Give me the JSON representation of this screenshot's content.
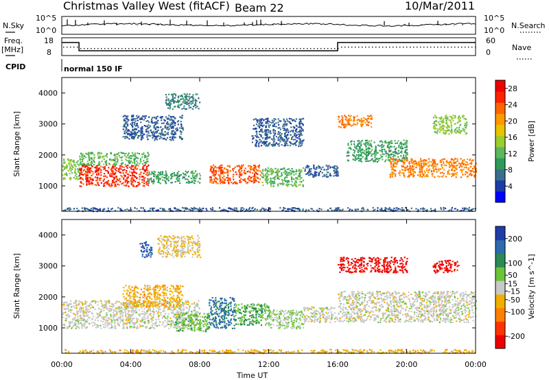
{
  "header": {
    "title": "Christmas Valley West (fitACF)",
    "beam": "Beam 22",
    "date": "10/Mar/2011"
  },
  "summary_labels": {
    "nsky": "N.Sky",
    "nsky_hi": "10^5",
    "nsky_lo": "10^0",
    "nsearch": "N.Search",
    "nsearch_hi": "10^5",
    "nsearch_lo": "10^0",
    "freq": "Freq.",
    "freq_unit": "[MHz]",
    "freq_hi": "18",
    "freq_lo": "8",
    "nave": "Nave",
    "nave_hi": "60",
    "nave_lo": "0",
    "cpid": "CPID",
    "cpid_value": "normal 150 IF"
  },
  "colors": {
    "power_scale": [
      "#0000ff",
      "#1e3ca8",
      "#3a6e8c",
      "#2e9a5a",
      "#5cb85c",
      "#9ccc2e",
      "#e8c400",
      "#ff9900",
      "#ff6600",
      "#ff2200",
      "#ee0000"
    ],
    "velocity_scale": [
      "#1f3da8",
      "#2e6ab0",
      "#2b8a55",
      "#6cc43a",
      "#c8c8c8",
      "#f0b000",
      "#ff8000",
      "#ff3300",
      "#ee0000"
    ]
  },
  "chart_data": [
    {
      "type": "heatmap",
      "name": "Power panel",
      "xlabel": "",
      "ylabel": "Slant Range [km]",
      "x_ticks": [
        "00:00",
        "04:00",
        "08:00",
        "12:00",
        "16:00",
        "20:00",
        "00:00"
      ],
      "y_ticks": [
        "1000",
        "2000",
        "3000",
        "4000"
      ],
      "xlim_hours": [
        0,
        24
      ],
      "ylim_km": [
        180,
        4500
      ],
      "colorbar": {
        "label": "Power [dB]",
        "ticks": [
          "4",
          "8",
          "12",
          "16",
          "20",
          "24",
          "28"
        ],
        "range": [
          0,
          30
        ]
      },
      "regions": [
        {
          "x": [
            0.0,
            1.0
          ],
          "y": [
            1200,
            1900
          ],
          "value": 14
        },
        {
          "x": [
            1.0,
            5.0
          ],
          "y": [
            1000,
            1700
          ],
          "value": 26
        },
        {
          "x": [
            1.0,
            5.0
          ],
          "y": [
            1700,
            2100
          ],
          "value": 12
        },
        {
          "x": [
            3.5,
            7.0
          ],
          "y": [
            2500,
            3300
          ],
          "value": 6
        },
        {
          "x": [
            5.0,
            8.0
          ],
          "y": [
            1100,
            1500
          ],
          "value": 10
        },
        {
          "x": [
            6.0,
            8.0
          ],
          "y": [
            3500,
            4000
          ],
          "value": 8
        },
        {
          "x": [
            8.5,
            11.5
          ],
          "y": [
            1100,
            1700
          ],
          "value": 24
        },
        {
          "x": [
            11.5,
            14.0
          ],
          "y": [
            1000,
            1600
          ],
          "value": 12
        },
        {
          "x": [
            11.0,
            14.0
          ],
          "y": [
            2300,
            3200
          ],
          "value": 6
        },
        {
          "x": [
            14.0,
            16.0
          ],
          "y": [
            1300,
            1700
          ],
          "value": 6
        },
        {
          "x": [
            16.0,
            18.0
          ],
          "y": [
            2900,
            3300
          ],
          "value": 22
        },
        {
          "x": [
            16.5,
            20.0
          ],
          "y": [
            1800,
            2500
          ],
          "value": 10
        },
        {
          "x": [
            19.0,
            24.0
          ],
          "y": [
            1300,
            1900
          ],
          "value": 22
        },
        {
          "x": [
            21.5,
            23.5
          ],
          "y": [
            2700,
            3300
          ],
          "value": 14
        },
        {
          "x": [
            0.0,
            24.0
          ],
          "y": [
            200,
            320
          ],
          "value": 6
        }
      ]
    },
    {
      "type": "heatmap",
      "name": "Velocity panel",
      "xlabel": "Time UT",
      "ylabel": "Slant Range [km]",
      "x_ticks": [
        "00:00",
        "04:00",
        "08:00",
        "12:00",
        "16:00",
        "20:00",
        "00:00"
      ],
      "y_ticks": [
        "1000",
        "2000",
        "3000",
        "4000"
      ],
      "xlim_hours": [
        0,
        24
      ],
      "ylim_km": [
        180,
        4500
      ],
      "colorbar": {
        "label": "Velocity [m s^-1]",
        "ticks": [
          "200",
          "100",
          "50",
          "15",
          "-15",
          "-50",
          "-100",
          "-200"
        ],
        "range": [
          -250,
          250
        ]
      },
      "regions": [
        {
          "x": [
            0.0,
            8.0
          ],
          "y": [
            1000,
            1900
          ],
          "value": 0
        },
        {
          "x": [
            3.5,
            7.0
          ],
          "y": [
            1700,
            2400
          ],
          "value": -60
        },
        {
          "x": [
            4.5,
            5.2
          ],
          "y": [
            3300,
            3800
          ],
          "value": 180
        },
        {
          "x": [
            5.5,
            8.0
          ],
          "y": [
            3300,
            4000
          ],
          "value": -30
        },
        {
          "x": [
            6.5,
            8.5
          ],
          "y": [
            900,
            1500
          ],
          "value": 60
        },
        {
          "x": [
            8.5,
            10.0
          ],
          "y": [
            1000,
            2000
          ],
          "value": 150
        },
        {
          "x": [
            10.0,
            12.0
          ],
          "y": [
            1100,
            1800
          ],
          "value": 80
        },
        {
          "x": [
            12.0,
            14.0
          ],
          "y": [
            1000,
            1600
          ],
          "value": 30
        },
        {
          "x": [
            14.0,
            16.0
          ],
          "y": [
            1200,
            1700
          ],
          "value": 0
        },
        {
          "x": [
            16.0,
            20.0
          ],
          "y": [
            2800,
            3300
          ],
          "value": -220
        },
        {
          "x": [
            21.5,
            23.0
          ],
          "y": [
            2800,
            3200
          ],
          "value": -220
        },
        {
          "x": [
            16.0,
            24.0
          ],
          "y": [
            1200,
            2200
          ],
          "value": 0
        },
        {
          "x": [
            0.0,
            24.0
          ],
          "y": [
            200,
            320
          ],
          "value": -60
        }
      ]
    }
  ]
}
